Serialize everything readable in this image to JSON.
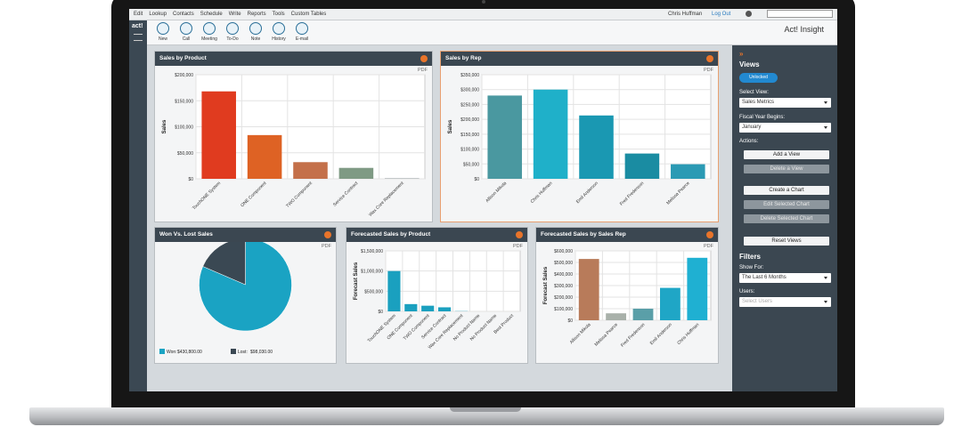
{
  "menu": [
    "Edit",
    "Lookup",
    "Contacts",
    "Schedule",
    "Write",
    "Reports",
    "Tools",
    "Custom Tables"
  ],
  "user": "Chris Huffman",
  "logout": "Log Out",
  "logo": "act!",
  "toolbar": [
    "New",
    "Call",
    "Meeting",
    "To-Do",
    "Note",
    "History",
    "E-mail"
  ],
  "app_title": "Act! Insight",
  "sidebar": {
    "views_title": "Views",
    "toggle": "Unlocked",
    "select_view_label": "Select View:",
    "select_view": "Sales Metrics",
    "fiscal_label": "Fiscal Year Begins:",
    "fiscal": "January",
    "actions_label": "Actions:",
    "buttons": [
      {
        "label": "Add a View",
        "enabled": true
      },
      {
        "label": "Delete a View",
        "enabled": false
      },
      {
        "label": "Create a Chart",
        "enabled": true
      },
      {
        "label": "Edit Selected Chart",
        "enabled": false
      },
      {
        "label": "Delete Selected Chart",
        "enabled": false
      },
      {
        "label": "Reset Views",
        "enabled": true
      }
    ],
    "filters_title": "Filters",
    "show_for_label": "Show For:",
    "show_for": "The Last 6 Months",
    "users_label": "Users:",
    "users": "Select Users"
  },
  "chart_data": [
    {
      "type": "bar",
      "title": "Sales by Product",
      "pdf": "PDF",
      "y_label": "Sales",
      "categories": [
        "TouchONE System",
        "ONE Component",
        "TWO Component",
        "Service Contract",
        "Wax Core Replacement"
      ],
      "values": [
        168000,
        84000,
        32000,
        21000,
        1000
      ],
      "colors": [
        "#e03b1f",
        "#de6224",
        "#c4704a",
        "#7f9a84",
        "#9aa0a4"
      ],
      "ylim": [
        0,
        200000
      ],
      "yticks": [
        {
          "value": 0,
          "label": "$0"
        },
        {
          "value": 50000,
          "label": "$50,000"
        },
        {
          "value": 100000,
          "label": "$100,000"
        },
        {
          "value": 150000,
          "label": "$150,000"
        },
        {
          "value": 200000,
          "label": "$200,000"
        }
      ],
      "grid": true
    },
    {
      "type": "bar",
      "title": "Sales by Rep",
      "pdf": "PDF",
      "y_label": "Sales",
      "categories": [
        "Allison Mikola",
        "Chris Huffman",
        "Emil Anderson",
        "Fred Fredenson",
        "Melissa Pearce"
      ],
      "values": [
        280000,
        300000,
        213000,
        85000,
        49000
      ],
      "colors": [
        "#4a98a0",
        "#1fb0c9",
        "#1a98b2",
        "#1a8ca2",
        "#2b9ab4"
      ],
      "ylim": [
        0,
        350000
      ],
      "yticks": [
        {
          "value": 0,
          "label": "$0"
        },
        {
          "value": 50000,
          "label": "$50,000"
        },
        {
          "value": 100000,
          "label": "$100,000"
        },
        {
          "value": 150000,
          "label": "$150,000"
        },
        {
          "value": 200000,
          "label": "$200,000"
        },
        {
          "value": 250000,
          "label": "$250,000"
        },
        {
          "value": 300000,
          "label": "$300,000"
        },
        {
          "value": 350000,
          "label": "$350,000"
        }
      ],
      "grid": true
    },
    {
      "type": "pie",
      "title": "Won Vs. Lost Sales",
      "pdf": "PDF",
      "categories": [
        "Won:",
        "Lost:"
      ],
      "values": [
        430800,
        98030
      ],
      "value_labels": [
        "$430,800.00",
        "$98,030.00"
      ],
      "colors": [
        "#1aa3c3",
        "#3a4853"
      ]
    },
    {
      "type": "bar",
      "title": "Forecasted Sales by Product",
      "pdf": "PDF",
      "y_label": "Forecast Sales",
      "categories": [
        "TouchONE System",
        "ONE Component",
        "TWO Component",
        "Service Contract",
        "Wax Core Replacement",
        "No Product Name",
        "No Product Name",
        "Best Product"
      ],
      "values": [
        1000000,
        180000,
        140000,
        100000,
        5000,
        0,
        0,
        0
      ],
      "colors": [
        "#1aa0bf",
        "#1aa0bf",
        "#1aa0bf",
        "#1aa0bf",
        "#1aa0bf",
        "#1aa0bf",
        "#1aa0bf",
        "#1aa0bf"
      ],
      "ylim": [
        0,
        1500000
      ],
      "yticks": [
        {
          "value": 0,
          "label": "$0"
        },
        {
          "value": 500000,
          "label": "$500,000"
        },
        {
          "value": 1000000,
          "label": "$1,000,000"
        },
        {
          "value": 1500000,
          "label": "$1,500,000"
        }
      ],
      "grid": true
    },
    {
      "type": "bar",
      "title": "Forecasted Sales by Sales Rep",
      "pdf": "PDF",
      "y_label": "Forecast Sales",
      "categories": [
        "Allison Mikola",
        "Melissa Pearce",
        "Fred Fredenson",
        "Emil Anderson",
        "Chris Huffman"
      ],
      "values": [
        530000,
        60000,
        100000,
        280000,
        540000
      ],
      "colors": [
        "#b87b5a",
        "#a9b1aa",
        "#5a9fa8",
        "#1fa6c6",
        "#1fb0d2"
      ],
      "ylim": [
        0,
        600000
      ],
      "yticks": [
        {
          "value": 0,
          "label": "$0"
        },
        {
          "value": 100000,
          "label": "$100,000"
        },
        {
          "value": 200000,
          "label": "$200,000"
        },
        {
          "value": 300000,
          "label": "$300,000"
        },
        {
          "value": 400000,
          "label": "$400,000"
        },
        {
          "value": 500000,
          "label": "$500,000"
        },
        {
          "value": 600000,
          "label": "$600,000"
        }
      ],
      "grid": true
    }
  ]
}
